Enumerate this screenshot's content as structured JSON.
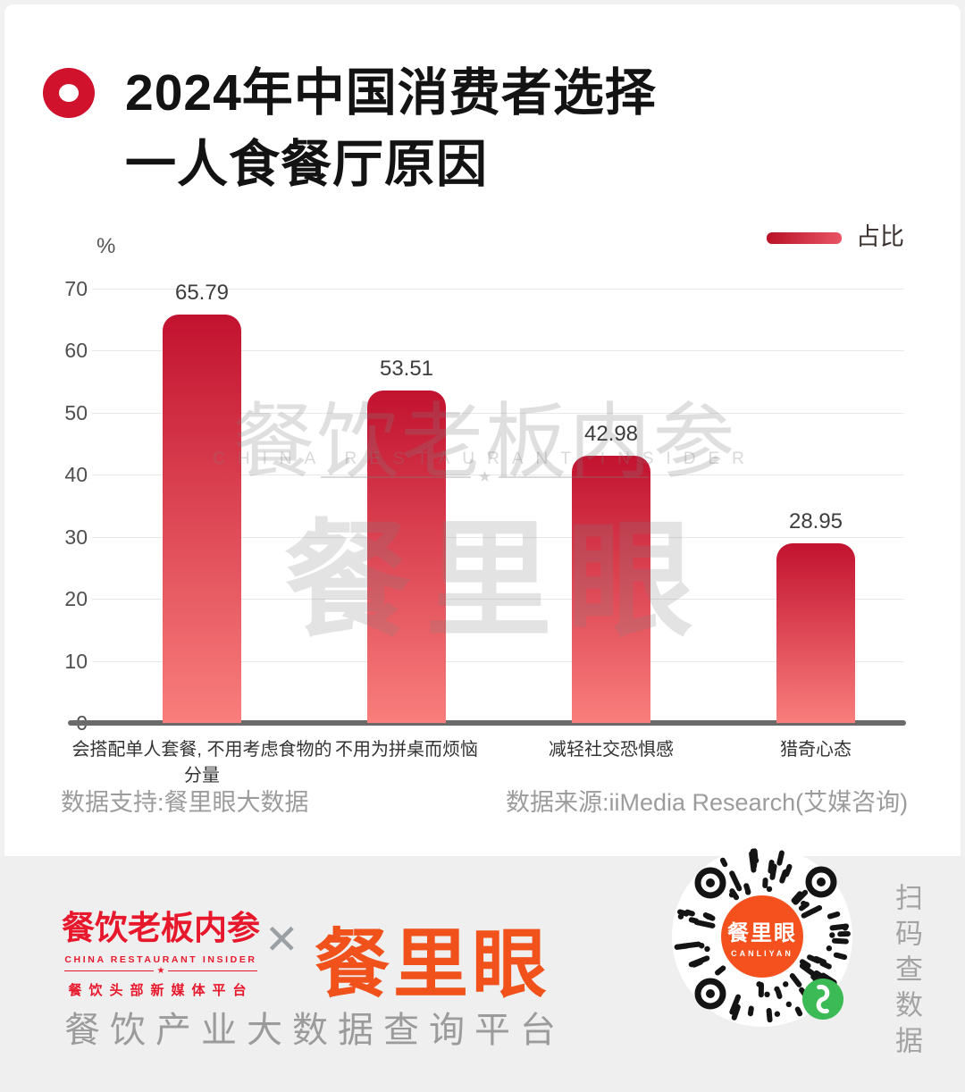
{
  "title": {
    "line1": "2024年中国消费者选择",
    "line2": "一人食餐厅原因"
  },
  "legend": {
    "label": "占比"
  },
  "chart_data": {
    "type": "bar",
    "title": "2024年中国消费者选择一人食餐厅原因",
    "categories": [
      "会搭配单人套餐, 不用考虑食物的分量",
      "不用为拼桌而烦恼",
      "减轻社交恐惧感",
      "猎奇心态"
    ],
    "values": [
      65.79,
      53.51,
      42.98,
      28.95
    ],
    "series_name": "占比",
    "xlabel": "",
    "ylabel": "%",
    "ylim": [
      0,
      70
    ],
    "yticks": [
      0,
      10,
      20,
      30,
      40,
      50,
      60,
      70
    ],
    "grid": true,
    "legend_position": "top-right",
    "bar_gradient": [
      "#c2122f",
      "#f97e7c"
    ]
  },
  "watermark": {
    "line1": "餐饮老板内参",
    "line2": "CHINA RESTAURANT INSIDER",
    "star": "★",
    "line3": "餐里眼"
  },
  "sources": {
    "support": "数据支持:餐里眼大数据",
    "origin": "数据来源:iiMedia Research(艾媒咨询)"
  },
  "footer": {
    "brand1": {
      "name": "餐饮老板内参",
      "subtitle": "CHINA RESTAURANT INSIDER",
      "star": "★",
      "tagline": "餐饮头部新媒体平台"
    },
    "separator": "✕",
    "brand2": "餐里眼",
    "platform": "餐饮产业大数据查询平台",
    "qr": {
      "center_name": "餐里眼",
      "center_sub": "CANLIYAN"
    },
    "scan_text": "扫码查数据"
  },
  "colors": {
    "accent_red": "#d0122c",
    "bar_top": "#c2122f",
    "bar_bottom": "#f97e7c",
    "logo_red": "#e8182c",
    "brand_orange": "#f1511b",
    "miniprogram_green": "#3bba55",
    "footer_bg": "#efeff0"
  }
}
